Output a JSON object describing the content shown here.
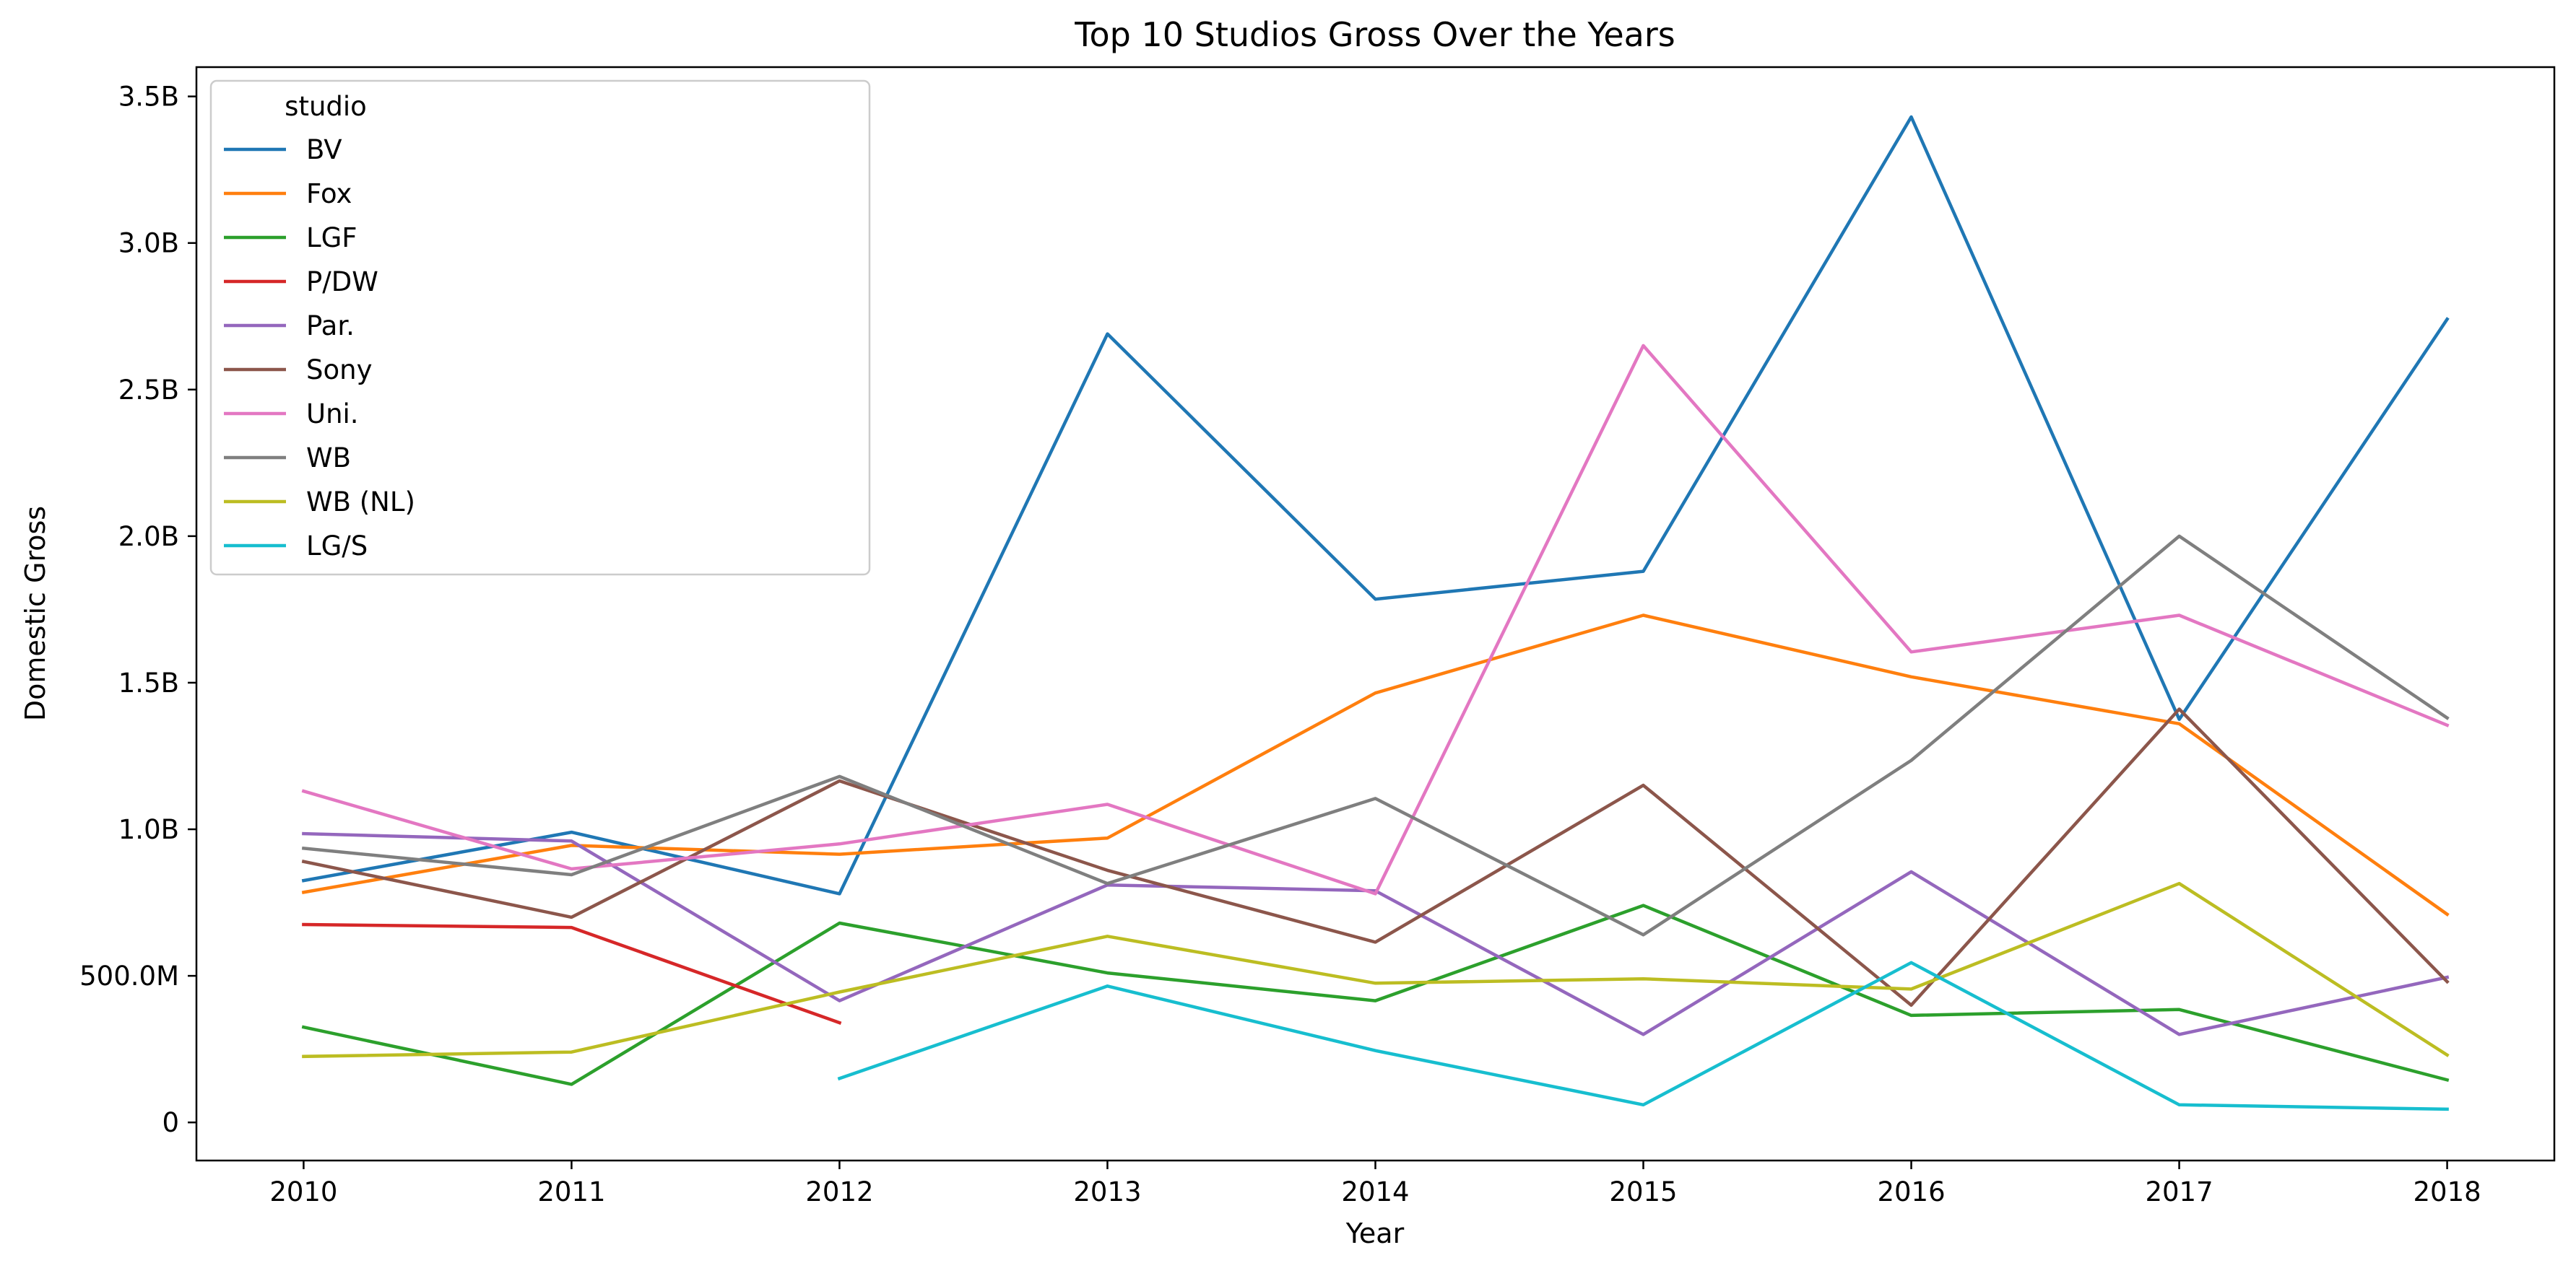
{
  "chart_data": {
    "type": "line",
    "title": "Top 10 Studios Gross Over the Years",
    "xlabel": "Year",
    "ylabel": "Domestic Gross",
    "x": [
      2010,
      2011,
      2012,
      2013,
      2014,
      2015,
      2016,
      2017,
      2018
    ],
    "x_tick_labels": [
      "2010",
      "2011",
      "2012",
      "2013",
      "2014",
      "2015",
      "2016",
      "2017",
      "2018"
    ],
    "xlim": [
      2009.6,
      2018.4
    ],
    "ylim": [
      -130000000,
      3600000000
    ],
    "y_ticks": [
      0,
      500000000,
      1000000000,
      1500000000,
      2000000000,
      2500000000,
      3000000000,
      3500000000
    ],
    "y_tick_labels": [
      "0",
      "500.0M",
      "1.0B",
      "1.5B",
      "2.0B",
      "2.5B",
      "3.0B",
      "3.5B"
    ],
    "grid": false,
    "legend": {
      "title": "studio",
      "placement": "top-left"
    },
    "series": [
      {
        "name": "BV",
        "color": "#1f77b4",
        "values": [
          825000000,
          990000000,
          780000000,
          2690000000,
          1785000000,
          1880000000,
          3430000000,
          1375000000,
          2740000000
        ]
      },
      {
        "name": "Fox",
        "color": "#ff7f0e",
        "values": [
          785000000,
          945000000,
          915000000,
          970000000,
          1465000000,
          1730000000,
          1520000000,
          1360000000,
          710000000
        ]
      },
      {
        "name": "LGF",
        "color": "#2ca02c",
        "values": [
          325000000,
          130000000,
          680000000,
          510000000,
          415000000,
          740000000,
          365000000,
          385000000,
          145000000
        ]
      },
      {
        "name": "P/DW",
        "color": "#d62728",
        "values": [
          675000000,
          665000000,
          340000000,
          null,
          null,
          null,
          null,
          null,
          null
        ]
      },
      {
        "name": "Par.",
        "color": "#9467bd",
        "values": [
          985000000,
          960000000,
          415000000,
          810000000,
          790000000,
          300000000,
          855000000,
          300000000,
          495000000
        ]
      },
      {
        "name": "Sony",
        "color": "#8c564b",
        "values": [
          890000000,
          700000000,
          1165000000,
          860000000,
          615000000,
          1150000000,
          400000000,
          1410000000,
          480000000
        ]
      },
      {
        "name": "Uni.",
        "color": "#e377c2",
        "values": [
          1130000000,
          865000000,
          950000000,
          1085000000,
          780000000,
          2650000000,
          1605000000,
          1730000000,
          1355000000
        ]
      },
      {
        "name": "WB",
        "color": "#7f7f7f",
        "values": [
          935000000,
          845000000,
          1180000000,
          815000000,
          1105000000,
          640000000,
          1235000000,
          2000000000,
          1380000000
        ]
      },
      {
        "name": "WB (NL)",
        "color": "#bcbd22",
        "values": [
          225000000,
          240000000,
          445000000,
          635000000,
          475000000,
          490000000,
          455000000,
          815000000,
          230000000
        ]
      },
      {
        "name": "LG/S",
        "color": "#17becf",
        "values": [
          null,
          null,
          150000000,
          465000000,
          245000000,
          60000000,
          545000000,
          60000000,
          45000000
        ]
      }
    ]
  }
}
